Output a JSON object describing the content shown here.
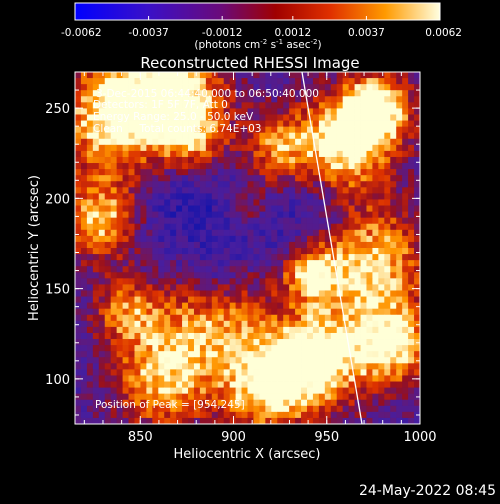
{
  "colorbar": {
    "tick_labels": [
      "-0.0062",
      "-0.0037",
      "-0.0012",
      "0.0012",
      "0.0037",
      "0.0062"
    ],
    "unit_main": "(photons cm",
    "unit_sup1": "-2",
    "unit_mid1": " s",
    "unit_sup2": "-1",
    "unit_mid2": " asec",
    "unit_sup3": "-2",
    "unit_end": ")",
    "range": [
      -0.0062,
      0.0062
    ]
  },
  "plot": {
    "title": "Reconstructed RHESSI Image",
    "xlabel": "Heliocentric X (arcsec)",
    "ylabel": "Heliocentric Y (arcsec)",
    "xticks": [
      "850",
      "900",
      "950",
      "1000"
    ],
    "yticks": [
      "100",
      "150",
      "200",
      "250"
    ],
    "xlim": [
      815,
      1000
    ],
    "ylim": [
      75,
      270
    ]
  },
  "annotations": {
    "line1": "3-Dec-2015 06:44:40.000 to 06:50:40.000",
    "line2": "Detectors: 1F 5F 7F, Att 0",
    "line3": "Energy Range: 25.0 - 50.0 keV",
    "line4": "Clean     Total counts: 6.74E+03",
    "peak": "Position of Peak = [954,245]"
  },
  "timestamp": "24-May-2022 08:45",
  "colors": {
    "background": "#000000",
    "limb_line": "#ffffff",
    "text": "#ffffff"
  }
}
